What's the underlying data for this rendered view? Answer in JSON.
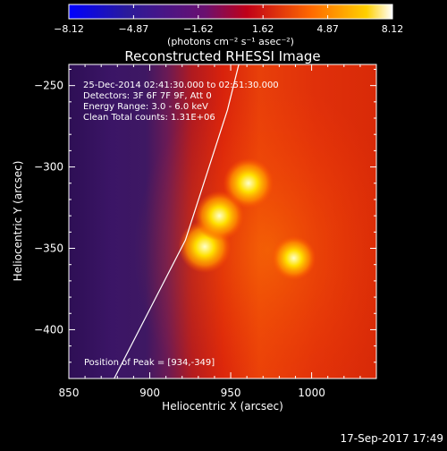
{
  "colorbar": {
    "ticks": [
      "-8.12",
      "-4.87",
      "-1.62",
      "1.62",
      "4.87",
      "8.12"
    ],
    "unit_label": "(photons cm⁻² s⁻¹ asec⁻²)"
  },
  "title": "Reconstructed RHESSI Image",
  "info": {
    "line1": "25-Dec-2014 02:41:30.000 to 02:51:30.000",
    "line2": "Detectors: 3F 6F 7F 9F, Att 0",
    "line3": "Energy Range: 3.0 - 6.0 keV",
    "line4": "Clean    Total counts: 1.31E+06"
  },
  "peak_label": "Position of Peak = [934,-349]",
  "timestamp": "17-Sep-2017 17:49",
  "chart_data": {
    "type": "heatmap",
    "title": "Reconstructed RHESSI Image",
    "xlabel": "Heliocentric X (arcsec)",
    "ylabel": "Heliocentric Y (arcsec)",
    "xlim": [
      850,
      1040
    ],
    "ylim": [
      -430,
      -237
    ],
    "x_ticks": [
      850,
      900,
      950,
      1000
    ],
    "y_ticks": [
      -250,
      -300,
      -350,
      -400
    ],
    "x_tick_labels": [
      "850",
      "900",
      "950",
      "1000"
    ],
    "y_tick_labels": [
      "−250",
      "−300",
      "−350",
      "−400"
    ],
    "colorbar_range": [
      -8.12,
      8.12
    ],
    "colormap": [
      "#0000ff",
      "#2a0060",
      "#4d1880",
      "#ff0000",
      "#ff8000",
      "#ffff00",
      "#ffffff"
    ],
    "peaks": [
      {
        "x": 934,
        "y": -349,
        "value": 8.1
      },
      {
        "x": 943,
        "y": -330,
        "value": 7.4
      },
      {
        "x": 961,
        "y": -310,
        "value": 7.6
      },
      {
        "x": 989,
        "y": -356,
        "value": 6.2
      }
    ],
    "limb_line": [
      [
        878,
        -430
      ],
      [
        922,
        -345
      ],
      [
        948,
        -265
      ],
      [
        955,
        -237
      ]
    ]
  }
}
